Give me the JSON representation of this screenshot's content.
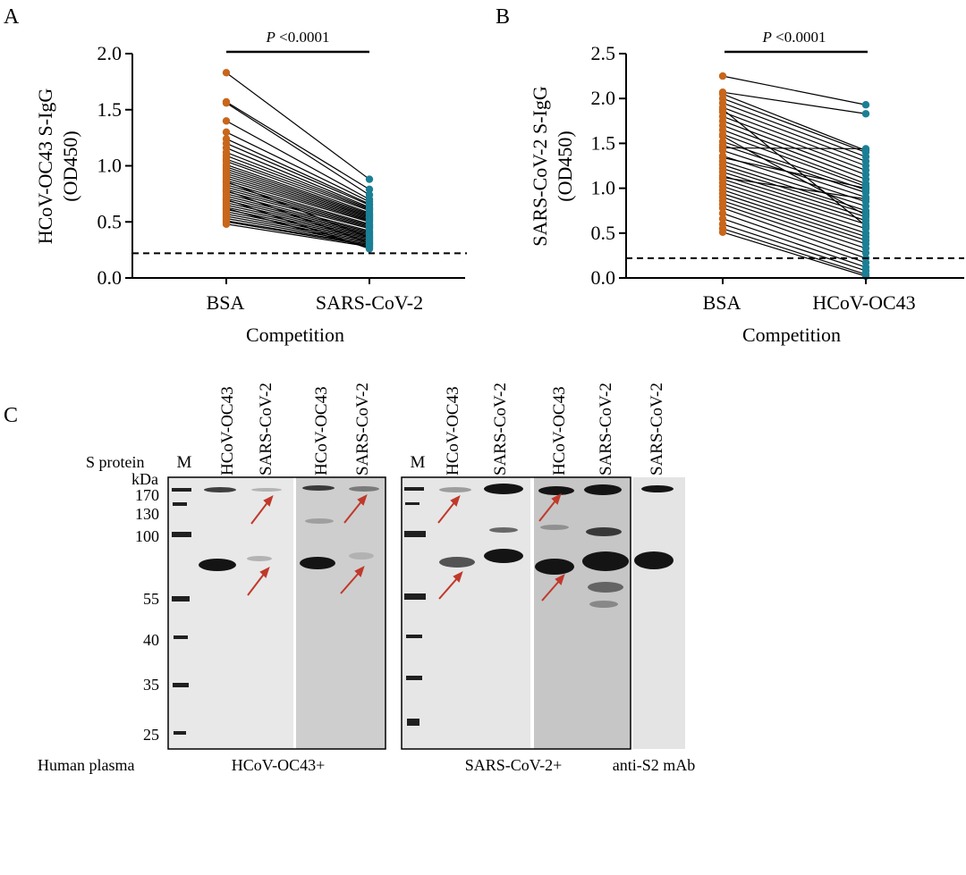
{
  "colors": {
    "bsa_dot": "#c8661b",
    "competitor_dot": "#1b7f95",
    "line": "#000000",
    "arrow": "#c0392b",
    "blot_bg_light": "#e6e6e6",
    "blot_bg_dark": "#c8c8c8",
    "band": "#141414"
  },
  "panels": {
    "A": {
      "label": "A"
    },
    "B": {
      "label": "B"
    },
    "C": {
      "label": "C"
    }
  },
  "chart_data": [
    {
      "type": "scatter",
      "id": "A",
      "title": "",
      "xlabel": "Competition",
      "ylabel_line1": "HCoV-OC43 S-IgG",
      "ylabel_line2": "(OD450)",
      "categories": [
        "BSA",
        "SARS-CoV-2"
      ],
      "ylim": [
        0,
        2.0
      ],
      "yticks": [
        "0.0",
        "0.5",
        "1.0",
        "1.5",
        "2.0"
      ],
      "ytick_values": [
        0,
        0.5,
        1.0,
        1.5,
        2.0
      ],
      "cutoff": 0.22,
      "annotation_p": "P",
      "annotation_rest": " <0.0001",
      "grid": false,
      "paired": [
        [
          1.83,
          0.88
        ],
        [
          1.57,
          0.79
        ],
        [
          1.56,
          0.74
        ],
        [
          1.4,
          0.7
        ],
        [
          1.3,
          0.68
        ],
        [
          1.24,
          0.66
        ],
        [
          1.2,
          0.65
        ],
        [
          1.16,
          0.63
        ],
        [
          1.12,
          0.62
        ],
        [
          1.09,
          0.61
        ],
        [
          1.06,
          0.6
        ],
        [
          1.04,
          0.58
        ],
        [
          1.01,
          0.57
        ],
        [
          0.99,
          0.56
        ],
        [
          0.97,
          0.55
        ],
        [
          0.95,
          0.54
        ],
        [
          0.93,
          0.53
        ],
        [
          0.91,
          0.52
        ],
        [
          0.89,
          0.51
        ],
        [
          0.87,
          0.5
        ],
        [
          0.85,
          0.48
        ],
        [
          0.83,
          0.47
        ],
        [
          0.81,
          0.46
        ],
        [
          0.79,
          0.45
        ],
        [
          0.77,
          0.44
        ],
        [
          0.75,
          0.42
        ],
        [
          0.73,
          0.41
        ],
        [
          0.71,
          0.4
        ],
        [
          0.69,
          0.39
        ],
        [
          0.67,
          0.38
        ],
        [
          0.65,
          0.37
        ],
        [
          0.63,
          0.36
        ],
        [
          0.61,
          0.35
        ],
        [
          0.59,
          0.34
        ],
        [
          0.57,
          0.33
        ],
        [
          0.55,
          0.32
        ],
        [
          0.53,
          0.31
        ],
        [
          0.51,
          0.3
        ],
        [
          0.5,
          0.29
        ],
        [
          0.48,
          0.28
        ],
        [
          0.62,
          0.27
        ],
        [
          0.7,
          0.26
        ],
        [
          0.78,
          0.31
        ],
        [
          0.86,
          0.36
        ]
      ]
    },
    {
      "type": "scatter",
      "id": "B",
      "title": "",
      "xlabel": "Competition",
      "ylabel_line1": "SARS-CoV-2 S-IgG",
      "ylabel_line2": "(OD450)",
      "categories": [
        "BSA",
        "HCoV-OC43"
      ],
      "ylim": [
        0,
        2.5
      ],
      "yticks": [
        "0.0",
        "0.5",
        "1.0",
        "1.5",
        "2.0",
        "2.5"
      ],
      "ytick_values": [
        0,
        0.5,
        1.0,
        1.5,
        2.0,
        2.5
      ],
      "cutoff": 0.22,
      "annotation_p": "P",
      "annotation_rest": " <0.0001",
      "grid": false,
      "paired": [
        [
          2.25,
          1.93
        ],
        [
          2.07,
          1.83
        ],
        [
          2.05,
          1.42
        ],
        [
          2.0,
          1.4
        ],
        [
          1.95,
          1.35
        ],
        [
          1.9,
          1.3
        ],
        [
          1.85,
          1.25
        ],
        [
          1.8,
          1.2
        ],
        [
          1.75,
          1.15
        ],
        [
          1.7,
          1.1
        ],
        [
          1.65,
          1.05
        ],
        [
          1.6,
          1.02
        ],
        [
          1.52,
          0.98
        ],
        [
          1.48,
          0.95
        ],
        [
          1.42,
          0.9
        ],
        [
          1.36,
          0.85
        ],
        [
          1.3,
          0.8
        ],
        [
          1.26,
          0.75
        ],
        [
          1.22,
          0.72
        ],
        [
          1.18,
          0.68
        ],
        [
          1.14,
          0.64
        ],
        [
          1.1,
          0.6
        ],
        [
          1.06,
          0.55
        ],
        [
          1.02,
          0.5
        ],
        [
          0.98,
          0.46
        ],
        [
          0.94,
          0.42
        ],
        [
          0.9,
          0.38
        ],
        [
          0.86,
          0.33
        ],
        [
          0.82,
          0.28
        ],
        [
          0.78,
          0.22
        ],
        [
          0.72,
          0.17
        ],
        [
          0.66,
          0.12
        ],
        [
          0.6,
          0.08
        ],
        [
          0.55,
          0.04
        ],
        [
          0.51,
          0.02
        ],
        [
          1.34,
          1.0
        ],
        [
          1.58,
          0.7
        ],
        [
          1.88,
          0.58
        ],
        [
          1.12,
          0.88
        ],
        [
          1.45,
          1.44
        ]
      ]
    }
  ],
  "blot": {
    "s_protein_label": "S protein",
    "marker_lane": "M",
    "kda_label": "kDa",
    "kda_values": [
      "170",
      "130",
      "100",
      "55",
      "40",
      "35",
      "25"
    ],
    "kda_numbers": [
      170,
      130,
      100,
      55,
      40,
      35,
      25
    ],
    "lanes_group1": [
      "HCoV-OC43",
      "SARS-CoV-2",
      "HCoV-OC43",
      "SARS-CoV-2"
    ],
    "lanes_group2": [
      "HCoV-OC43",
      "SARS-CoV-2",
      "HCoV-OC43",
      "SARS-CoV-2"
    ],
    "lanes_group3": [
      "SARS-CoV-2"
    ],
    "plasma_row_label": "Human plasma",
    "group_labels": [
      "HCoV-OC43+",
      "SARS-CoV-2+",
      "anti-S2 mAb"
    ]
  }
}
